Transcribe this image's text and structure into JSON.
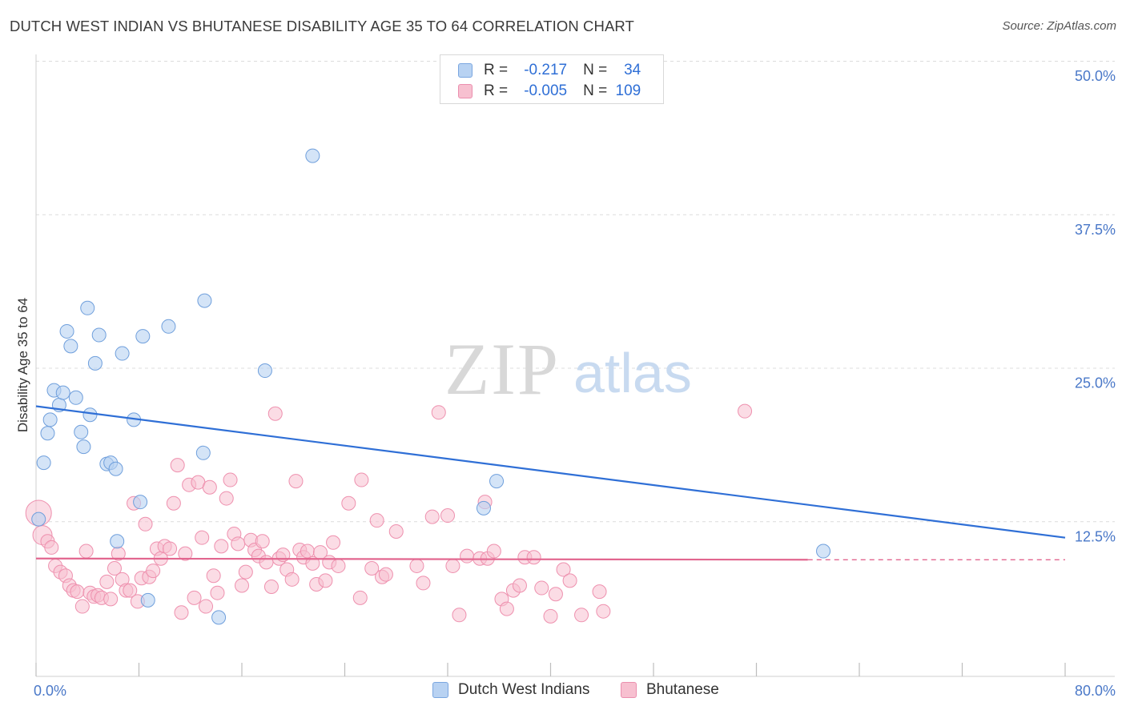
{
  "title": "DUTCH WEST INDIAN VS BHUTANESE DISABILITY AGE 35 TO 64 CORRELATION CHART",
  "source": "Source: ZipAtlas.com",
  "watermark": {
    "zip": "ZIP",
    "atlas": "atlas"
  },
  "legend": {
    "rows": [
      {
        "r_label": "R =",
        "r_value": "-0.217",
        "n_label": "N =",
        "n_value": "34",
        "color": "#a8c8f0"
      },
      {
        "r_label": "R =",
        "r_value": "-0.005",
        "n_label": "N =",
        "n_value": "109",
        "color": "#f7b6c8"
      }
    ]
  },
  "bottom_legend": [
    "Dutch West Indians",
    "Bhutanese"
  ],
  "chart_data": {
    "type": "scatter",
    "xlabel": "",
    "ylabel": "Disability Age 35 to 64",
    "xlim": [
      0,
      80
    ],
    "ylim": [
      0,
      50
    ],
    "x_tick_labels": [
      "0.0%",
      "80.0%"
    ],
    "y_ticks": [
      12.5,
      25.0,
      37.5,
      50.0
    ],
    "y_tick_labels": [
      "12.5%",
      "25.0%",
      "37.5%",
      "50.0%"
    ],
    "grid": true,
    "legend_position": "top-center",
    "series": [
      {
        "name": "Dutch West Indians",
        "color": "#4a86d8",
        "fill": "#b8d2f2",
        "trend": {
          "x": [
            0,
            80
          ],
          "y": [
            22.0,
            11.3
          ],
          "style": "solid"
        },
        "points": [
          [
            0.2,
            12.8
          ],
          [
            0.6,
            17.4
          ],
          [
            0.9,
            19.8
          ],
          [
            1.1,
            20.9
          ],
          [
            1.4,
            23.3
          ],
          [
            1.8,
            22.1
          ],
          [
            2.1,
            23.1
          ],
          [
            2.4,
            28.1
          ],
          [
            2.7,
            26.9
          ],
          [
            3.1,
            22.7
          ],
          [
            3.5,
            19.9
          ],
          [
            3.7,
            18.7
          ],
          [
            4.0,
            30.0
          ],
          [
            4.2,
            21.3
          ],
          [
            4.6,
            25.5
          ],
          [
            4.9,
            27.8
          ],
          [
            5.5,
            17.3
          ],
          [
            5.8,
            17.4
          ],
          [
            6.2,
            16.9
          ],
          [
            6.7,
            26.3
          ],
          [
            7.6,
            20.9
          ],
          [
            8.1,
            14.2
          ],
          [
            8.3,
            27.7
          ],
          [
            10.3,
            28.5
          ],
          [
            13.0,
            18.2
          ],
          [
            13.1,
            30.6
          ],
          [
            17.8,
            24.9
          ],
          [
            21.5,
            42.4
          ],
          [
            35.8,
            15.9
          ],
          [
            6.3,
            11.0
          ],
          [
            8.7,
            6.2
          ],
          [
            14.2,
            4.8
          ],
          [
            34.8,
            13.7
          ],
          [
            61.2,
            10.2
          ]
        ]
      },
      {
        "name": "Bhutanese",
        "color": "#e8729a",
        "fill": "#f7c0d0",
        "trend": {
          "x": [
            0,
            60
          ],
          "y": [
            9.6,
            9.5
          ],
          "style": "solid",
          "extended_x": [
            60,
            80
          ],
          "extended_style": "dashed"
        },
        "points": [
          [
            0.2,
            13.3
          ],
          [
            0.5,
            11.5
          ],
          [
            0.9,
            11.0
          ],
          [
            1.2,
            10.5
          ],
          [
            1.5,
            9.0
          ],
          [
            1.9,
            8.5
          ],
          [
            2.3,
            8.2
          ],
          [
            2.6,
            7.4
          ],
          [
            2.9,
            7.0
          ],
          [
            3.2,
            6.9
          ],
          [
            3.6,
            5.7
          ],
          [
            3.9,
            10.2
          ],
          [
            4.2,
            6.8
          ],
          [
            4.5,
            6.5
          ],
          [
            4.8,
            6.6
          ],
          [
            5.1,
            6.4
          ],
          [
            5.5,
            7.7
          ],
          [
            5.8,
            6.3
          ],
          [
            6.1,
            8.8
          ],
          [
            6.4,
            10.0
          ],
          [
            6.7,
            7.9
          ],
          [
            7.0,
            7.0
          ],
          [
            7.3,
            7.0
          ],
          [
            7.6,
            14.1
          ],
          [
            7.9,
            6.1
          ],
          [
            8.2,
            8.0
          ],
          [
            8.5,
            12.4
          ],
          [
            8.8,
            8.1
          ],
          [
            9.1,
            8.6
          ],
          [
            9.4,
            10.4
          ],
          [
            9.7,
            9.6
          ],
          [
            10.0,
            10.6
          ],
          [
            10.4,
            10.4
          ],
          [
            10.7,
            14.1
          ],
          [
            11.0,
            17.2
          ],
          [
            11.3,
            5.2
          ],
          [
            11.6,
            10.0
          ],
          [
            11.9,
            15.6
          ],
          [
            12.3,
            6.4
          ],
          [
            12.6,
            15.8
          ],
          [
            12.9,
            11.3
          ],
          [
            13.2,
            5.7
          ],
          [
            13.5,
            15.4
          ],
          [
            13.8,
            8.2
          ],
          [
            14.1,
            6.8
          ],
          [
            14.4,
            10.6
          ],
          [
            14.8,
            14.5
          ],
          [
            15.1,
            16.0
          ],
          [
            15.4,
            11.6
          ],
          [
            15.7,
            10.8
          ],
          [
            16.0,
            7.4
          ],
          [
            16.3,
            8.5
          ],
          [
            16.7,
            11.1
          ],
          [
            17.0,
            10.3
          ],
          [
            17.3,
            9.8
          ],
          [
            17.6,
            11.0
          ],
          [
            17.9,
            9.3
          ],
          [
            18.3,
            7.3
          ],
          [
            18.6,
            21.4
          ],
          [
            18.9,
            9.6
          ],
          [
            19.2,
            9.9
          ],
          [
            19.5,
            8.7
          ],
          [
            19.9,
            7.9
          ],
          [
            20.2,
            15.9
          ],
          [
            20.5,
            10.3
          ],
          [
            20.8,
            9.7
          ],
          [
            21.1,
            10.2
          ],
          [
            21.5,
            9.2
          ],
          [
            21.8,
            7.5
          ],
          [
            22.1,
            10.1
          ],
          [
            22.5,
            7.8
          ],
          [
            22.8,
            9.3
          ],
          [
            23.1,
            10.9
          ],
          [
            23.5,
            9.0
          ],
          [
            24.3,
            14.1
          ],
          [
            25.2,
            6.4
          ],
          [
            25.3,
            16.0
          ],
          [
            26.1,
            8.8
          ],
          [
            26.5,
            12.7
          ],
          [
            26.9,
            8.1
          ],
          [
            27.2,
            8.3
          ],
          [
            28.0,
            11.8
          ],
          [
            29.6,
            9.0
          ],
          [
            30.1,
            7.6
          ],
          [
            30.8,
            13.0
          ],
          [
            31.3,
            21.5
          ],
          [
            32.0,
            13.1
          ],
          [
            32.4,
            9.0
          ],
          [
            32.9,
            5.0
          ],
          [
            33.5,
            9.8
          ],
          [
            34.5,
            9.6
          ],
          [
            34.9,
            14.2
          ],
          [
            35.1,
            9.6
          ],
          [
            35.6,
            10.2
          ],
          [
            36.2,
            6.3
          ],
          [
            36.6,
            5.5
          ],
          [
            37.1,
            7.0
          ],
          [
            37.6,
            7.4
          ],
          [
            38.0,
            9.7
          ],
          [
            38.7,
            9.7
          ],
          [
            39.3,
            7.2
          ],
          [
            40.0,
            4.9
          ],
          [
            40.4,
            6.7
          ],
          [
            41.0,
            8.7
          ],
          [
            41.5,
            7.8
          ],
          [
            42.4,
            5.0
          ],
          [
            43.8,
            6.9
          ],
          [
            44.1,
            5.3
          ],
          [
            55.1,
            21.6
          ]
        ]
      }
    ]
  }
}
